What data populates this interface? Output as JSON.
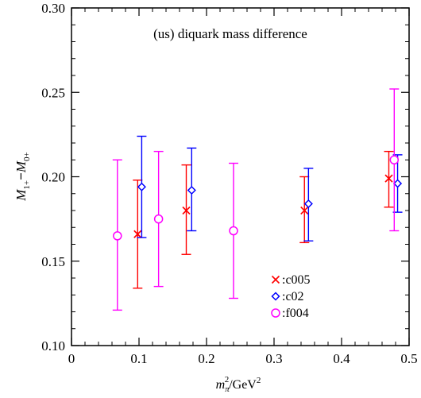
{
  "chart_data": {
    "type": "scatter",
    "title": "(us) diquark mass difference",
    "xlabel": {
      "base": "m",
      "sub": "π",
      "sup": "2",
      "unit_base": "/GeV",
      "unit_sup": "2"
    },
    "ylabel": {
      "a_base": "M",
      "a_sub": "1+",
      "minus": "−",
      "b_base": "M",
      "b_sub": "0+"
    },
    "xlim": [
      0,
      0.5
    ],
    "ylim": [
      0.1,
      0.3
    ],
    "xticks": [
      0,
      0.1,
      0.2,
      0.3,
      0.4,
      0.5
    ],
    "xtick_labels": [
      "0",
      "0.1",
      "0.2",
      "0.3",
      "0.4",
      "0.5"
    ],
    "yticks": [
      0.1,
      0.15,
      0.2,
      0.25,
      0.3
    ],
    "ytick_labels": [
      "0.10",
      "0.15",
      "0.20",
      "0.25",
      "0.30"
    ],
    "legend_position": "bottom-right",
    "series": [
      {
        "name": "c005",
        "marker": "x",
        "color": "#ff0000",
        "points": [
          {
            "x": 0.098,
            "y": 0.166,
            "ylow": 0.134,
            "yhigh": 0.198
          },
          {
            "x": 0.17,
            "y": 0.18,
            "ylow": 0.154,
            "yhigh": 0.207
          },
          {
            "x": 0.345,
            "y": 0.18,
            "ylow": 0.161,
            "yhigh": 0.2
          },
          {
            "x": 0.47,
            "y": 0.199,
            "ylow": 0.182,
            "yhigh": 0.215
          }
        ]
      },
      {
        "name": "c02",
        "marker": "diamond",
        "color": "#0000ff",
        "points": [
          {
            "x": 0.104,
            "y": 0.194,
            "ylow": 0.164,
            "yhigh": 0.224
          },
          {
            "x": 0.178,
            "y": 0.192,
            "ylow": 0.168,
            "yhigh": 0.217
          },
          {
            "x": 0.351,
            "y": 0.184,
            "ylow": 0.162,
            "yhigh": 0.205
          },
          {
            "x": 0.483,
            "y": 0.196,
            "ylow": 0.179,
            "yhigh": 0.213
          }
        ]
      },
      {
        "name": "f004",
        "marker": "circle",
        "color": "#ff00ff",
        "points": [
          {
            "x": 0.068,
            "y": 0.165,
            "ylow": 0.121,
            "yhigh": 0.21
          },
          {
            "x": 0.129,
            "y": 0.175,
            "ylow": 0.135,
            "yhigh": 0.215
          },
          {
            "x": 0.24,
            "y": 0.168,
            "ylow": 0.128,
            "yhigh": 0.208
          },
          {
            "x": 0.478,
            "y": 0.21,
            "ylow": 0.168,
            "yhigh": 0.252
          }
        ]
      }
    ],
    "legend_suffix": ":"
  }
}
